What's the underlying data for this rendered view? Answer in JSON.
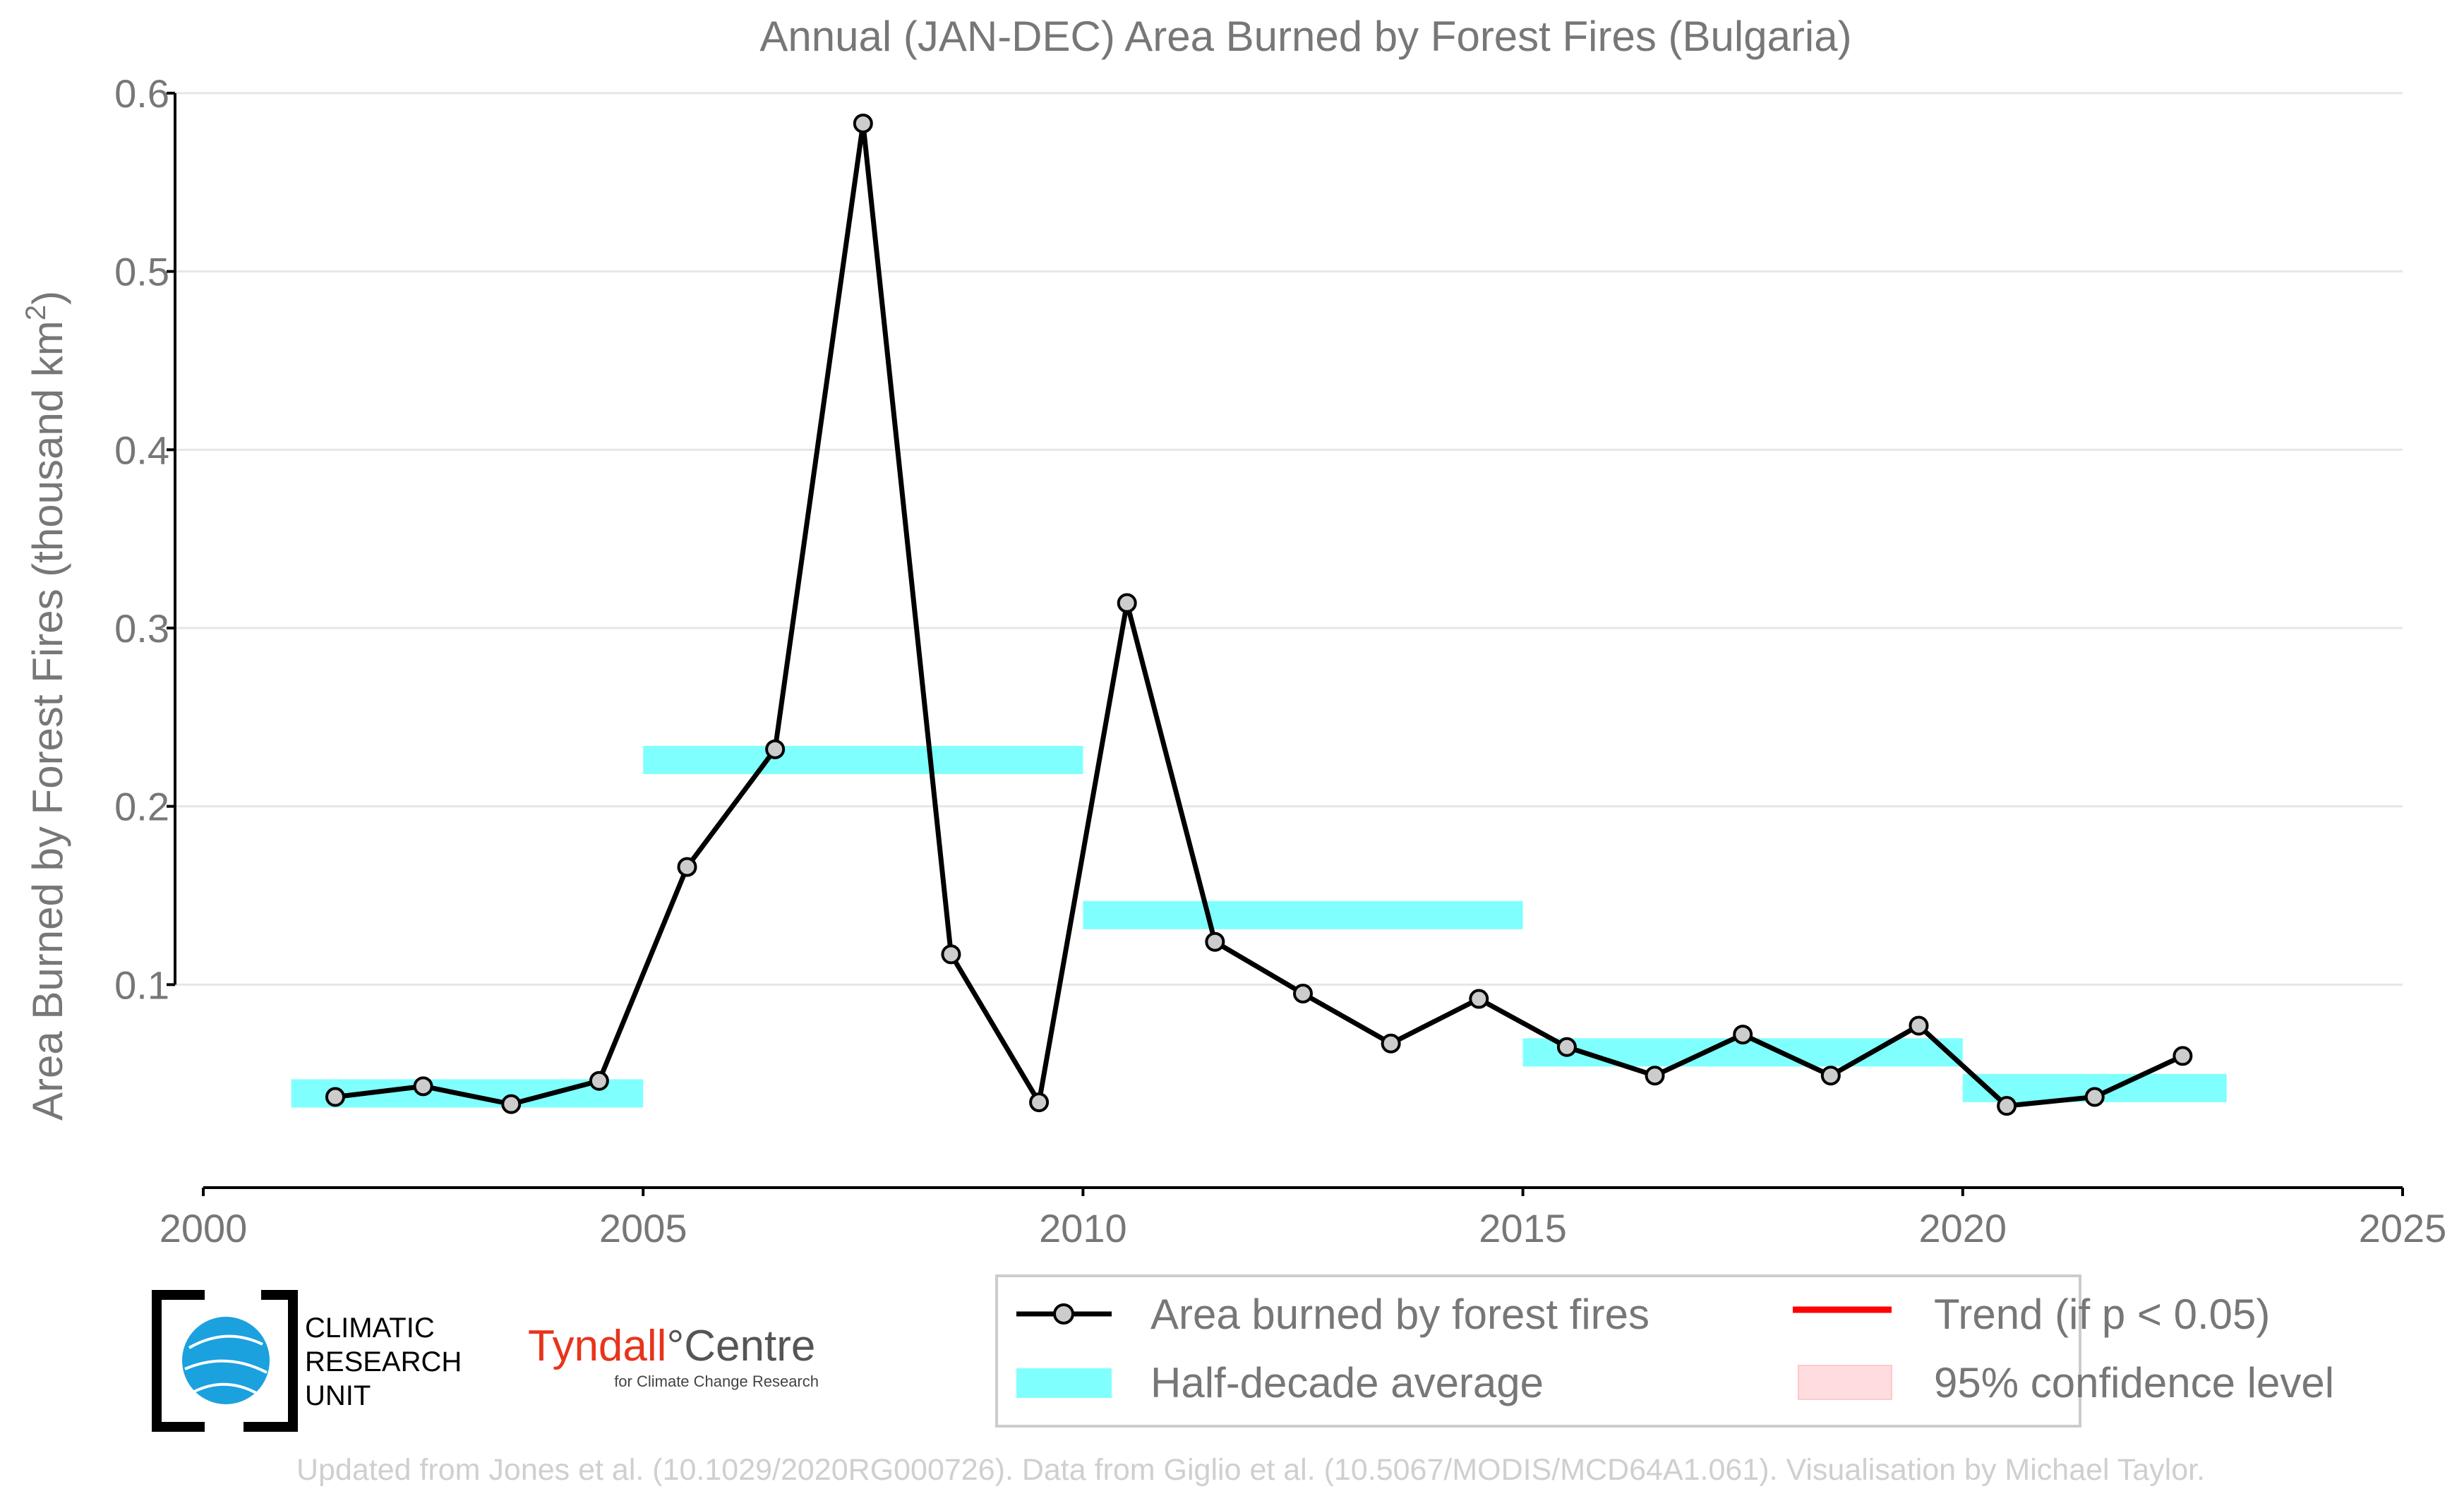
{
  "chart_data": {
    "type": "line",
    "title": "Annual (JAN-DEC) Area Burned by Forest Fires (Bulgaria)",
    "ylabel_main": "Area Burned by Forest Fires (thousand km",
    "ylabel_sup": "2",
    "ylabel_end": ")",
    "xlim": [
      2000,
      2025
    ],
    "ylim": [
      0,
      0.6
    ],
    "xticks": [
      2000,
      2005,
      2010,
      2015,
      2020,
      2025
    ],
    "yticks": [
      0.1,
      0.2,
      0.3,
      0.4,
      0.5,
      0.6
    ],
    "ytick_labels": [
      "0.1",
      "0.2",
      "0.3",
      "0.4",
      "0.5",
      "0.6"
    ],
    "grid": "horizontal",
    "series": [
      {
        "name": "Area burned by forest fires",
        "color": "#000000",
        "marker_fill": "#cccccc",
        "x": [
          2001.5,
          2002.5,
          2003.5,
          2004.5,
          2005.5,
          2006.5,
          2007.5,
          2008.5,
          2009.5,
          2010.5,
          2011.5,
          2012.5,
          2013.5,
          2014.5,
          2015.5,
          2016.5,
          2017.5,
          2018.5,
          2019.5,
          2020.5,
          2021.5,
          2022.5
        ],
        "y": [
          0.037,
          0.043,
          0.033,
          0.046,
          0.166,
          0.232,
          0.583,
          0.117,
          0.034,
          0.314,
          0.124,
          0.095,
          0.067,
          0.092,
          0.065,
          0.049,
          0.072,
          0.049,
          0.077,
          0.032,
          0.037,
          0.06
        ]
      },
      {
        "name": "Half-decade average",
        "color": "#80ffff",
        "type": "bar-segments",
        "segments": [
          {
            "x0": 2001,
            "x1": 2005,
            "y": 0.039
          },
          {
            "x0": 2005,
            "x1": 2010,
            "y": 0.226
          },
          {
            "x0": 2010,
            "x1": 2015,
            "y": 0.139
          },
          {
            "x0": 2015,
            "x1": 2020,
            "y": 0.062
          },
          {
            "x0": 2020,
            "x1": 2023,
            "y": 0.042
          }
        ]
      }
    ],
    "legend": {
      "placement": "bottom-right",
      "entries": [
        {
          "label": "Area burned by forest fires",
          "kind": "line-marker",
          "color": "#000000"
        },
        {
          "label": "Trend (if p < 0.05)",
          "kind": "line",
          "color": "#ff0000"
        },
        {
          "label": "Half-decade average",
          "kind": "band",
          "color": "#80ffff"
        },
        {
          "label": "95% confidence level",
          "kind": "band",
          "color": "#ffdddf"
        }
      ]
    }
  },
  "logos": {
    "cru_line1": "CLIMATIC",
    "cru_line2": "RESEARCH",
    "cru_line3": "UNIT",
    "tyndall_main": "Tyndall",
    "tyndall_degree": "°",
    "tyndall_centre": "Centre",
    "tyndall_sub": "for Climate Change Research"
  },
  "footer": {
    "credit": "Updated from Jones et al. (10.1029/2020RG000726). Data from Giglio et al. (10.5067/MODIS/MCD64A1.061). Visualisation by Michael Taylor."
  },
  "colors": {
    "text_gray": "#777777",
    "grid": "#e6e6e6",
    "tyndall_red": "#e8341c",
    "cru_blue": "#1ba1de",
    "footer_gray": "#cfcfcf"
  }
}
